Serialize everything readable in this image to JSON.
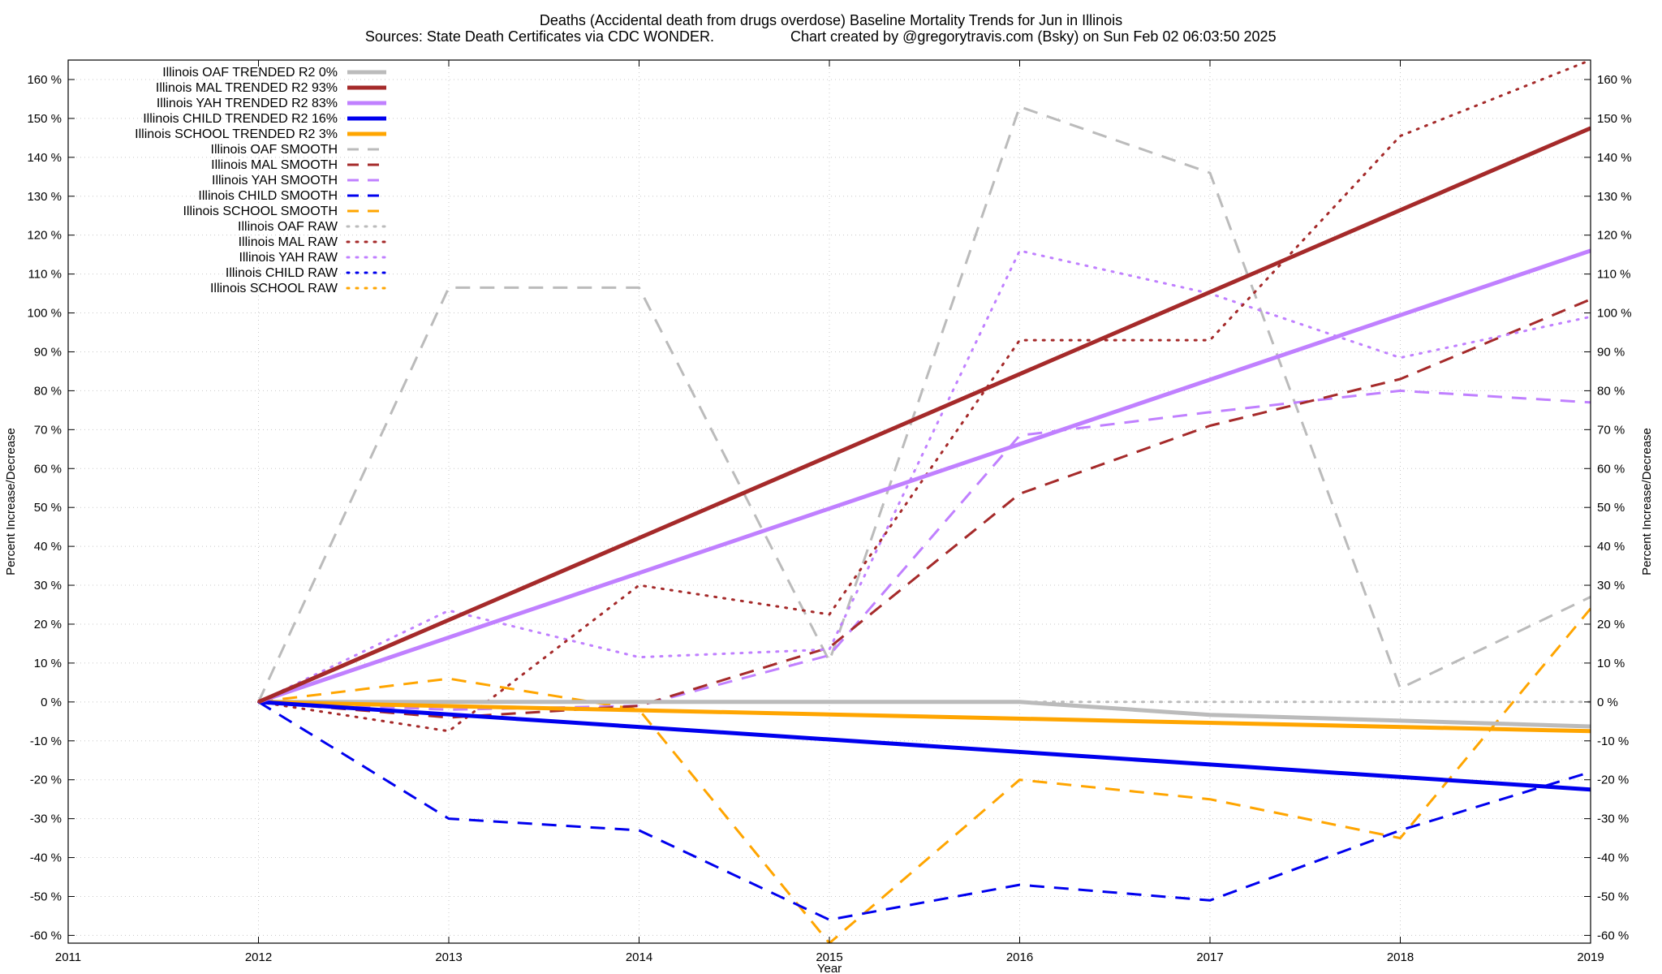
{
  "title_line1": "Deaths (Accidental death from drugs overdose)  Baseline Mortality Trends for Jun in Illinois",
  "title_line2_left": "Sources: State Death Certificates via CDC WONDER.",
  "title_line2_right": "Chart created by @gregorytravis.com (Bsky) on Sun Feb 02 06:03:50 2025",
  "chart_data": {
    "type": "line",
    "xlabel": "Year",
    "ylabel": "Percent Increase/Decrease",
    "y2label": "Percent Increase/Decrease",
    "xlim": [
      2011,
      2019
    ],
    "ylim": [
      -62,
      165
    ],
    "x_ticks": [
      2011,
      2012,
      2013,
      2014,
      2015,
      2016,
      2017,
      2018,
      2019
    ],
    "y_ticks": [
      -60,
      -50,
      -40,
      -30,
      -20,
      -10,
      0,
      10,
      20,
      30,
      40,
      50,
      60,
      70,
      80,
      90,
      100,
      110,
      120,
      130,
      140,
      150,
      160
    ],
    "y_tick_suffix": " %",
    "grid": true,
    "legend_position": "top-left",
    "series": [
      {
        "name": "Illinois OAF TRENDED R2  0%",
        "color": "#bbbbbb",
        "style": "solid",
        "width": 5,
        "x": [
          2012,
          2016,
          2017,
          2019
        ],
        "y": [
          0,
          0,
          -3.3,
          -6.3
        ]
      },
      {
        "name": "Illinois MAL TRENDED R2  93%",
        "color": "#a52a2a",
        "style": "solid",
        "width": 5,
        "x": [
          2012,
          2019
        ],
        "y": [
          0,
          147.5
        ]
      },
      {
        "name": "Illinois YAH TRENDED R2  83%",
        "color": "#c080ff",
        "style": "solid",
        "width": 5,
        "x": [
          2012,
          2019
        ],
        "y": [
          0,
          116
        ]
      },
      {
        "name": "Illinois CHILD TRENDED R2  16%",
        "color": "#0000ee",
        "style": "solid",
        "width": 5,
        "x": [
          2012,
          2019
        ],
        "y": [
          0,
          -22.5
        ]
      },
      {
        "name": "Illinois SCHOOL TRENDED R2  3%",
        "color": "#ffa500",
        "style": "solid",
        "width": 5,
        "x": [
          2012,
          2019
        ],
        "y": [
          0,
          -7.5
        ]
      },
      {
        "name": "Illinois OAF SMOOTH",
        "color": "#bbbbbb",
        "style": "dashed",
        "width": 3,
        "x": [
          2012,
          2013,
          2014,
          2015,
          2016,
          2017,
          2018,
          2019
        ],
        "y": [
          0,
          106.5,
          106.5,
          10.5,
          153,
          136,
          3.5,
          27
        ]
      },
      {
        "name": "Illinois MAL SMOOTH",
        "color": "#a52a2a",
        "style": "dashed",
        "width": 3,
        "x": [
          2012,
          2013,
          2014,
          2015,
          2016,
          2017,
          2018,
          2019
        ],
        "y": [
          0,
          -4,
          -1,
          14,
          53.5,
          71,
          83,
          103.5
        ]
      },
      {
        "name": "Illinois YAH SMOOTH",
        "color": "#c080ff",
        "style": "dashed",
        "width": 3,
        "x": [
          2012,
          2013,
          2014,
          2015,
          2016,
          2017,
          2018,
          2019
        ],
        "y": [
          0,
          -2,
          -1,
          12,
          68.5,
          74.5,
          80,
          77
        ]
      },
      {
        "name": "Illinois CHILD SMOOTH",
        "color": "#0000ee",
        "style": "dashed",
        "width": 3,
        "x": [
          2012,
          2013,
          2014,
          2015,
          2016,
          2017,
          2018,
          2019
        ],
        "y": [
          0,
          -30,
          -33,
          -56,
          -47,
          -51,
          -33,
          -18
        ]
      },
      {
        "name": "Illinois SCHOOL SMOOTH",
        "color": "#ffa500",
        "style": "dashed",
        "width": 3,
        "x": [
          2012,
          2013,
          2014,
          2015,
          2016,
          2017,
          2018,
          2019
        ],
        "y": [
          0,
          6,
          -2,
          -62,
          -20,
          -25,
          -35,
          24
        ]
      },
      {
        "name": "Illinois OAF RAW",
        "color": "#bbbbbb",
        "style": "dotted",
        "width": 3,
        "x": [
          2012,
          2013,
          2014,
          2015,
          2016,
          2017,
          2018,
          2019
        ],
        "y": [
          0,
          0,
          0,
          0,
          0,
          0,
          0,
          0
        ]
      },
      {
        "name": "Illinois MAL RAW",
        "color": "#a52a2a",
        "style": "dotted",
        "width": 3,
        "x": [
          2012,
          2013,
          2014,
          2015,
          2016,
          2017,
          2018,
          2019
        ],
        "y": [
          0,
          -7.5,
          30,
          22.5,
          93,
          93,
          145.5,
          165
        ]
      },
      {
        "name": "Illinois YAH RAW",
        "color": "#c080ff",
        "style": "dotted",
        "width": 3,
        "x": [
          2012,
          2013,
          2014,
          2015,
          2016,
          2017,
          2018,
          2019
        ],
        "y": [
          0,
          23.5,
          11.5,
          13.5,
          116,
          105,
          88.5,
          99
        ]
      },
      {
        "name": "Illinois CHILD RAW",
        "color": "#0000ee",
        "style": "dotted",
        "width": 3,
        "x": [],
        "y": []
      },
      {
        "name": "Illinois SCHOOL RAW",
        "color": "#ffa500",
        "style": "dotted",
        "width": 3,
        "x": [],
        "y": []
      }
    ]
  }
}
